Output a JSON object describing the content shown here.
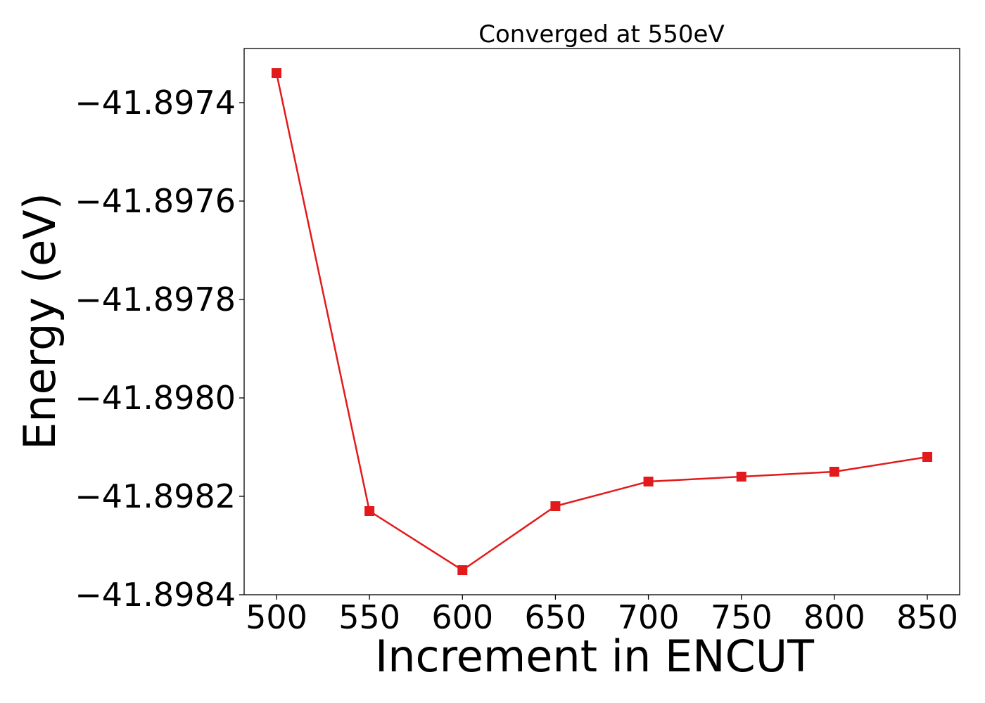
{
  "chart_data": {
    "type": "line",
    "title": "Converged at 550eV",
    "xlabel": "Increment in ENCUT",
    "ylabel": "Energy (eV)",
    "x": [
      500,
      550,
      600,
      650,
      700,
      750,
      800,
      850
    ],
    "series": [
      {
        "values": [
          -41.89734,
          -41.89823,
          -41.89835,
          -41.89822,
          -41.89817,
          -41.89816,
          -41.89815,
          -41.89812
        ],
        "color": "#e31a1c",
        "marker": "square"
      }
    ],
    "xticks": [
      500,
      550,
      600,
      650,
      700,
      750,
      800,
      850
    ],
    "xtick_labels": [
      "500",
      "550",
      "600",
      "650",
      "700",
      "750",
      "800",
      "850"
    ],
    "yticks": [
      -41.8974,
      -41.8976,
      -41.8978,
      -41.898,
      -41.8982,
      -41.8984
    ],
    "ytick_labels": [
      "−41.8974",
      "−41.8976",
      "−41.8978",
      "−41.8980",
      "−41.8982",
      "−41.8984"
    ],
    "xlim": [
      482.6,
      867.4
    ],
    "ylim": [
      -41.8984,
      -41.89729
    ],
    "grid": false,
    "legend": "none"
  }
}
